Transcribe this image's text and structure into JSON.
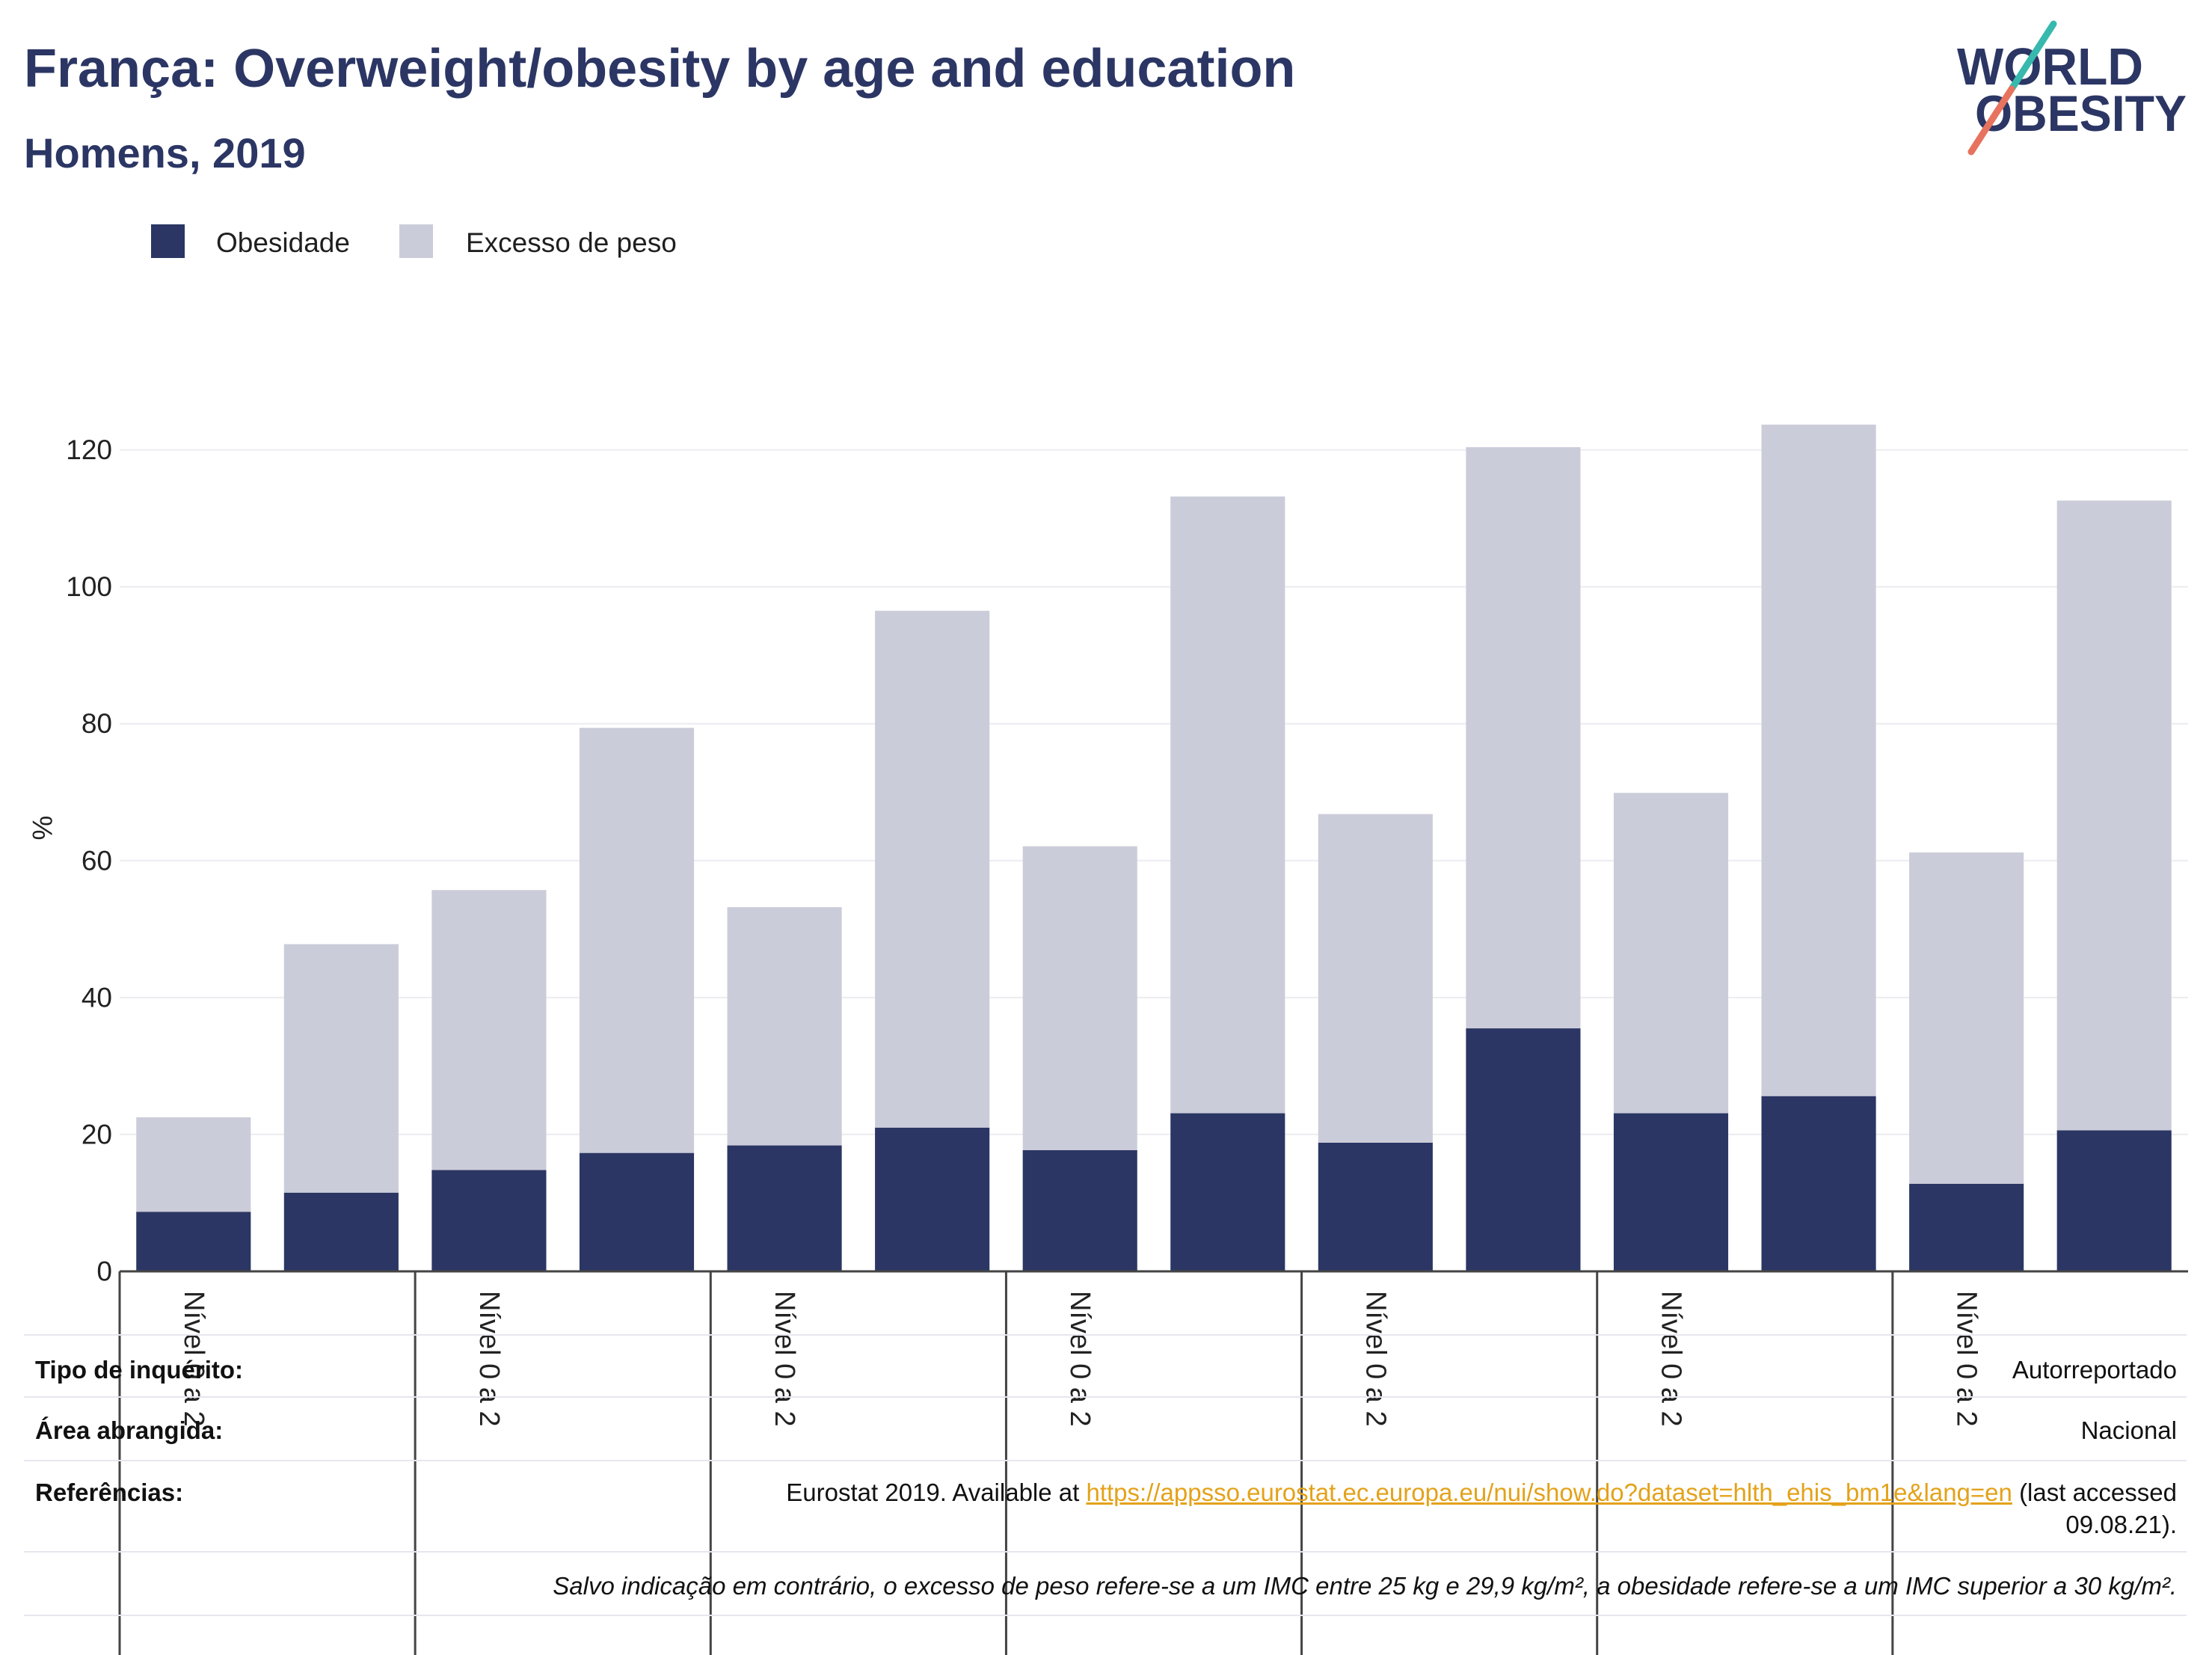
{
  "theme": {
    "title_color": "#2b3664",
    "grid_color": "#ececf1",
    "axis_color": "#444444",
    "link_color": "#e3a21a"
  },
  "logo": {
    "line1": "WORLD",
    "line2": "OBESITY",
    "text_color": "#2b3664",
    "slash_top_color": "#37b9ad",
    "slash_bottom_color": "#e7735f"
  },
  "chart_data": {
    "type": "bar",
    "stacked": true,
    "title": "França: Overweight/obesity by age and education",
    "subtitle": "Homens, 2019",
    "xlabel": "",
    "ylabel": "%",
    "ylim": [
      0,
      124
    ],
    "yticks": [
      0,
      20,
      40,
      60,
      80,
      100,
      120
    ],
    "grid": true,
    "legend_position": "top-left",
    "categories": [
      "Nível 0 a 2",
      "",
      "Nível 0 a 2",
      "",
      "Nível 0 a 2",
      "",
      "Nível 0 a 2",
      "",
      "Nível 0 a 2",
      "",
      "Nível 0 a 2",
      "",
      "Nível 0 a 2",
      ""
    ],
    "series": [
      {
        "name": "Obesidade",
        "color": "#2b3664",
        "values": [
          8.7,
          11.5,
          14.8,
          17.3,
          18.4,
          21.0,
          17.7,
          23.1,
          18.8,
          35.5,
          23.1,
          25.6,
          12.8,
          20.6
        ]
      },
      {
        "name": "Excesso de peso",
        "color": "#cbccd9",
        "values": [
          13.8,
          36.3,
          40.9,
          62.1,
          34.8,
          75.5,
          44.4,
          90.1,
          48.0,
          84.9,
          46.8,
          98.1,
          48.4,
          92.0
        ]
      }
    ]
  },
  "info_table": {
    "survey_type": {
      "label": "Tipo de inquérito:",
      "value": "Autorreportado"
    },
    "coverage": {
      "label": "Área abrangida:",
      "value": "Nacional"
    },
    "references": {
      "label": "Referências:",
      "text_before": "Eurostat 2019. Available at",
      "link": "https://appsso.eurostat.ec.europa.eu/nui/show.do?dataset=hlth_ehis_bm1e&lang=en",
      "text_after": "(last accessed",
      "text_after_line2": "09.08.21)."
    },
    "note": "Salvo indicação em contrário, o excesso de peso refere-se a um IMC entre 25 kg e 29,9 kg/m², a obesidade refere-se a um IMC superior a 30 kg/m²."
  }
}
